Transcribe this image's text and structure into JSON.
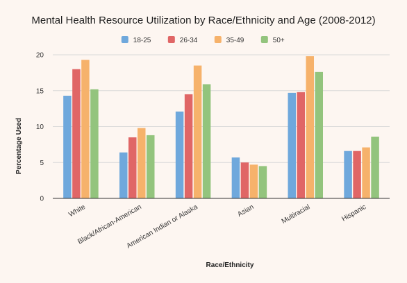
{
  "chart_data": {
    "type": "bar",
    "title": "Mental Health Resource Utilization by Race/Ethnicity and Age (2008-2012)",
    "xlabel": "Race/Ethnicity",
    "ylabel": "Percentage Used",
    "ylim": [
      0,
      20
    ],
    "yticks": [
      "0",
      "5",
      "10",
      "15",
      "20"
    ],
    "grid": true,
    "legend_position": "top",
    "categories": [
      "White",
      "Black/African-American",
      "American Indian or Alaska",
      "Asian",
      "Multiracial",
      "Hispanic"
    ],
    "series": [
      {
        "name": "18-25",
        "color": "#6fa8dc",
        "values": [
          14.3,
          6.4,
          12.1,
          5.7,
          14.7,
          6.6
        ]
      },
      {
        "name": "26-34",
        "color": "#e06666",
        "values": [
          18.0,
          8.5,
          14.5,
          5.0,
          14.8,
          6.6
        ]
      },
      {
        "name": "35-49",
        "color": "#f6b26b",
        "values": [
          19.3,
          9.8,
          18.5,
          4.7,
          19.8,
          7.1
        ]
      },
      {
        "name": "50+",
        "color": "#93c47d",
        "values": [
          15.2,
          8.8,
          15.9,
          4.5,
          17.6,
          8.6
        ]
      }
    ]
  }
}
